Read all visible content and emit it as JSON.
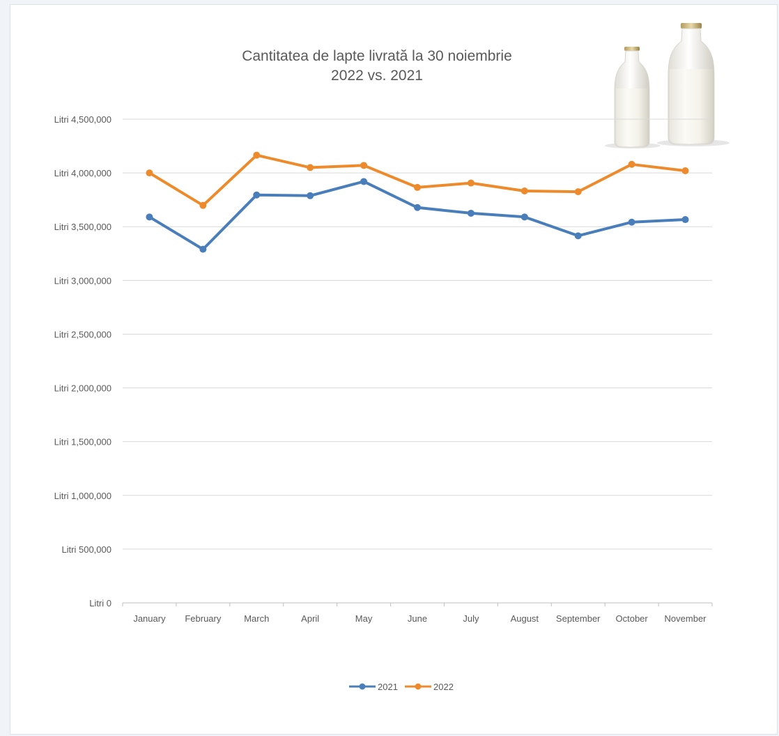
{
  "chart_data": {
    "type": "line",
    "title": "Cantitatea de lapte livrată la 30 noiembrie",
    "subtitle": "2022 vs. 2021",
    "categories": [
      "January",
      "February",
      "March",
      "April",
      "May",
      "June",
      "July",
      "August",
      "September",
      "October",
      "November"
    ],
    "series": [
      {
        "name": "2021",
        "color": "#4a7ebb",
        "values": [
          3590000,
          3290000,
          3795000,
          3788000,
          3920000,
          3678000,
          3625000,
          3590000,
          3415000,
          3542000,
          3566000
        ]
      },
      {
        "name": "2022",
        "color": "#ed8b2c",
        "values": [
          4000000,
          3698000,
          4165000,
          4050000,
          4070000,
          3865000,
          3906000,
          3832000,
          3825000,
          4080000,
          4020000
        ]
      }
    ],
    "y_ticks": [
      "Litri 0",
      "Litri 500,000",
      "Litri 1,000,000",
      "Litri 1,500,000",
      "Litri 2,000,000",
      "Litri 2,500,000",
      "Litri 3,000,000",
      "Litri 3,500,000",
      "Litri 4,000,000",
      "Litri 4,500,000"
    ],
    "ylim": [
      0,
      4500000
    ],
    "y_step": 500000,
    "grid": true,
    "legend_position": "bottom",
    "decoration": "milk-bottles-image"
  }
}
